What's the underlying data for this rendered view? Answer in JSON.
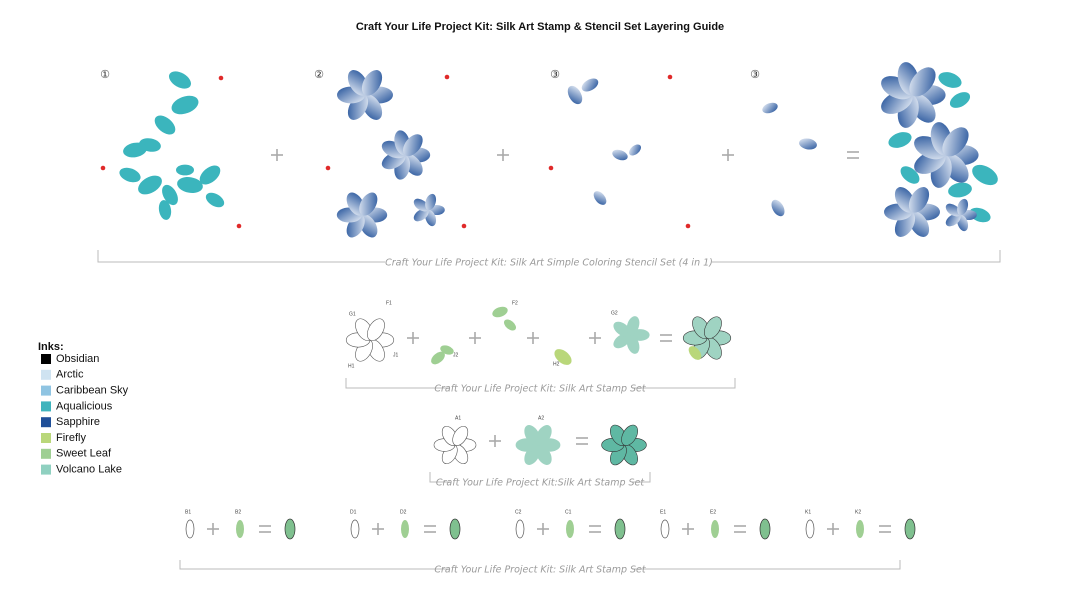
{
  "title": "Craft Your Life Project Kit: Silk Art Stamp & Stencil Set Layering Guide",
  "stencil_section": {
    "steps": [
      "①",
      "②",
      "③",
      "③"
    ],
    "caption": "Craft Your Life Project Kit: Silk Art Simple Coloring Stencil Set (4 in 1)"
  },
  "stamp_section_1": {
    "labels": [
      "G1",
      "F1",
      "J1",
      "H1",
      "J2",
      "F2",
      "H2",
      "G2"
    ],
    "caption": "Craft Your Life Project Kit: Silk Art Stamp Set"
  },
  "stamp_section_2": {
    "labels": [
      "A1",
      "A2"
    ],
    "caption": "Craft Your Life Project Kit:Silk Art Stamp Set"
  },
  "stamp_section_3": {
    "labels": [
      "B1",
      "B2",
      "D1",
      "D2",
      "C2",
      "C1",
      "E1",
      "E2",
      "K1",
      "K2"
    ],
    "caption": "Craft Your Life Project Kit: Silk Art Stamp Set"
  },
  "inks": {
    "title": "Inks:",
    "items": [
      {
        "name": "Obsidian",
        "color": "#000000"
      },
      {
        "name": "Arctic",
        "color": "#cfe3f1"
      },
      {
        "name": "Caribbean Sky",
        "color": "#8fc4e2"
      },
      {
        "name": "Aqualicious",
        "color": "#3fb4bd"
      },
      {
        "name": "Sapphire",
        "color": "#1f4f98"
      },
      {
        "name": "Firefly",
        "color": "#b9d77a"
      },
      {
        "name": "Sweet Leaf",
        "color": "#9fcf93"
      },
      {
        "name": "Volcano Lake",
        "color": "#8fd0c0"
      }
    ]
  }
}
